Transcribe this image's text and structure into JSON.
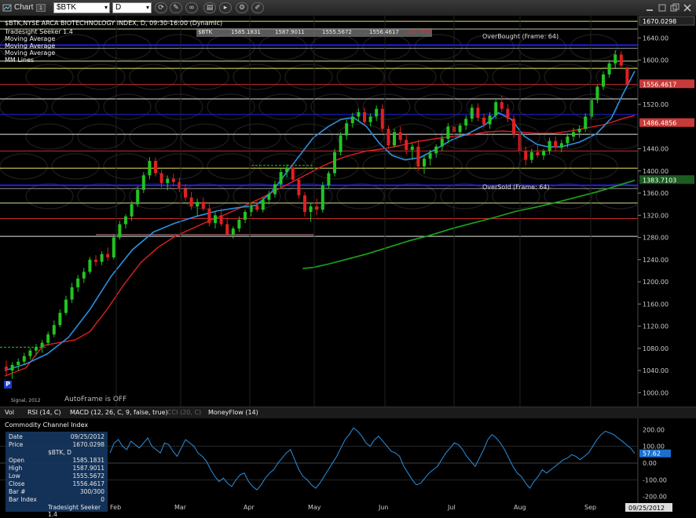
{
  "toolbar": {
    "chart_label": "Chart",
    "chart_badge": "1",
    "symbol": "$BTK",
    "interval": "D"
  },
  "header": {
    "title": "$BTK,NYSE ARCA BIOTECHNOLOGY INDEX, D, 09:30-16:00 (Dynamic)",
    "studies": [
      "Tradesight Seeker 1.4",
      "Moving Average",
      "Moving Average",
      "Moving Average",
      "MM Lines"
    ],
    "quote_strip": [
      "$BTK",
      "1585.1831",
      "1587.9011",
      "1555.5672",
      "1556.4617",
      "-20.3500"
    ]
  },
  "annotations": {
    "overbought": "OverBought (Frame: 64)",
    "oversold": "OverSold (Frame: 64)",
    "autoframe": "AutoFrame is OFF",
    "signal": "Signal, 2012"
  },
  "colors": {
    "background": "#000000",
    "up_candle": "#22c322",
    "down_candle": "#e02020",
    "ma_fast": "#2a90e0",
    "ma_mid": "#e02020",
    "ma_slow": "#1aa51a",
    "mm_blue": "#1010d0",
    "mm_yellow": "#f0f0a0",
    "mm_red": "#e02020",
    "price_tag_red": "#d03030",
    "price_tag_green": "#1a5a20"
  },
  "chart_data": {
    "type": "candlestick",
    "x": [
      "Feb",
      "Mar",
      "Apr",
      "May",
      "Jun",
      "Jul",
      "Aug",
      "Sep"
    ],
    "y_ticks": [
      "1670.0298",
      "1640.00",
      "1600.00",
      "1556.4617",
      "1520.00",
      "1486.4856",
      "1440.00",
      "1400.00",
      "1383.7103",
      "1360.00",
      "1320.00",
      "1280.00",
      "1240.00",
      "1200.00",
      "1160.00",
      "1120.00",
      "1080.00",
      "1040.00",
      "1000.00"
    ],
    "ylim": [
      975,
      1680
    ],
    "price_tags": [
      {
        "value": 1670.03,
        "label": "1670.0298",
        "style": "dark"
      },
      {
        "value": 1556.46,
        "label": "1556.4617",
        "style": "red"
      },
      {
        "value": 1486.49,
        "label": "1486.4856",
        "style": "red"
      },
      {
        "value": 1383.71,
        "label": "1383.7103",
        "style": "green"
      }
    ],
    "mm_lines": [
      {
        "value": 1670,
        "color": "#ffff90",
        "width": 1
      },
      {
        "value": 1656,
        "color": "#d8d8a0",
        "width": 1
      },
      {
        "value": 1627,
        "color": "#2222ff",
        "width": 2
      },
      {
        "value": 1598,
        "color": "#f0f0a0",
        "width": 1
      },
      {
        "value": 1585,
        "color": "#ffff70",
        "width": 1
      },
      {
        "value": 1556,
        "color": "#e03030",
        "width": 1
      },
      {
        "value": 1530,
        "color": "#ffffff",
        "width": 1
      },
      {
        "value": 1502,
        "color": "#2222ff",
        "width": 1
      },
      {
        "value": 1466,
        "color": "#ffffff",
        "width": 1
      },
      {
        "value": 1436,
        "color": "#e03030",
        "width": 1
      },
      {
        "value": 1405,
        "color": "#ffff60",
        "width": 1
      },
      {
        "value": 1374,
        "color": "#2222ff",
        "width": 2
      },
      {
        "value": 1342,
        "color": "#f0f0a0",
        "width": 1
      },
      {
        "value": 1314,
        "color": "#e03030",
        "width": 1
      },
      {
        "value": 1282,
        "color": "#ffffff",
        "width": 1
      }
    ],
    "ma_fast": [
      [
        0,
        1040
      ],
      [
        10,
        1052
      ],
      [
        20,
        1070
      ],
      [
        30,
        1100
      ],
      [
        40,
        1150
      ],
      [
        50,
        1210
      ],
      [
        60,
        1258
      ],
      [
        70,
        1290
      ],
      [
        80,
        1306
      ],
      [
        90,
        1318
      ],
      [
        100,
        1328
      ],
      [
        110,
        1334
      ],
      [
        118,
        1338
      ],
      [
        125,
        1360
      ],
      [
        133,
        1400
      ],
      [
        138,
        1425
      ],
      [
        145,
        1460
      ],
      [
        152,
        1480
      ],
      [
        158,
        1493
      ],
      [
        164,
        1496
      ],
      [
        170,
        1480
      ],
      [
        176,
        1450
      ],
      [
        182,
        1428
      ],
      [
        188,
        1420
      ],
      [
        195,
        1424
      ],
      [
        202,
        1438
      ],
      [
        210,
        1456
      ],
      [
        218,
        1468
      ],
      [
        226,
        1484
      ],
      [
        232,
        1505
      ],
      [
        238,
        1493
      ],
      [
        244,
        1463
      ],
      [
        250,
        1448
      ],
      [
        256,
        1443
      ],
      [
        262,
        1444
      ],
      [
        270,
        1452
      ],
      [
        278,
        1467
      ],
      [
        285,
        1495
      ],
      [
        290,
        1535
      ],
      [
        296,
        1580
      ]
    ],
    "ma_mid": [
      [
        0,
        1030
      ],
      [
        10,
        1045
      ],
      [
        18,
        1085
      ],
      [
        25,
        1090
      ],
      [
        33,
        1095
      ],
      [
        40,
        1110
      ],
      [
        48,
        1150
      ],
      [
        56,
        1195
      ],
      [
        64,
        1235
      ],
      [
        72,
        1262
      ],
      [
        80,
        1282
      ],
      [
        88,
        1296
      ],
      [
        96,
        1310
      ],
      [
        104,
        1322
      ],
      [
        112,
        1336
      ],
      [
        120,
        1350
      ],
      [
        128,
        1366
      ],
      [
        136,
        1382
      ],
      [
        144,
        1398
      ],
      [
        150,
        1410
      ],
      [
        156,
        1420
      ],
      [
        162,
        1428
      ],
      [
        170,
        1436
      ],
      [
        178,
        1440
      ],
      [
        186,
        1446
      ],
      [
        194,
        1453
      ],
      [
        202,
        1458
      ],
      [
        210,
        1462
      ],
      [
        218,
        1465
      ],
      [
        226,
        1470
      ],
      [
        234,
        1472
      ],
      [
        242,
        1470
      ],
      [
        250,
        1468
      ],
      [
        258,
        1468
      ],
      [
        266,
        1472
      ],
      [
        274,
        1478
      ],
      [
        282,
        1484
      ],
      [
        290,
        1494
      ],
      [
        296,
        1500
      ]
    ],
    "ma_slow": [
      [
        140,
        1224
      ],
      [
        145,
        1226
      ],
      [
        152,
        1232
      ],
      [
        160,
        1240
      ],
      [
        170,
        1250
      ],
      [
        180,
        1262
      ],
      [
        190,
        1274
      ],
      [
        200,
        1284
      ],
      [
        210,
        1296
      ],
      [
        220,
        1306
      ],
      [
        230,
        1316
      ],
      [
        240,
        1327
      ],
      [
        250,
        1335
      ],
      [
        260,
        1344
      ],
      [
        270,
        1354
      ],
      [
        280,
        1364
      ],
      [
        290,
        1376
      ],
      [
        296,
        1383
      ]
    ],
    "ohlc": [
      [
        1047,
        1058,
        1030,
        1040
      ],
      [
        1040,
        1055,
        1025,
        1050
      ],
      [
        1050,
        1062,
        1040,
        1056
      ],
      [
        1056,
        1072,
        1050,
        1066
      ],
      [
        1066,
        1080,
        1060,
        1076
      ],
      [
        1076,
        1088,
        1068,
        1082
      ],
      [
        1082,
        1095,
        1072,
        1090
      ],
      [
        1090,
        1110,
        1085,
        1105
      ],
      [
        1105,
        1130,
        1100,
        1122
      ],
      [
        1122,
        1150,
        1118,
        1144
      ],
      [
        1144,
        1175,
        1140,
        1168
      ],
      [
        1168,
        1198,
        1162,
        1190
      ],
      [
        1190,
        1212,
        1182,
        1206
      ],
      [
        1206,
        1225,
        1198,
        1218
      ],
      [
        1218,
        1245,
        1214,
        1240
      ],
      [
        1240,
        1248,
        1228,
        1236
      ],
      [
        1236,
        1255,
        1230,
        1250
      ],
      [
        1250,
        1262,
        1238,
        1244
      ],
      [
        1244,
        1285,
        1240,
        1280
      ],
      [
        1280,
        1310,
        1276,
        1304
      ],
      [
        1304,
        1322,
        1296,
        1318
      ],
      [
        1318,
        1345,
        1310,
        1340
      ],
      [
        1340,
        1372,
        1335,
        1366
      ],
      [
        1366,
        1398,
        1360,
        1392
      ],
      [
        1392,
        1425,
        1385,
        1418
      ],
      [
        1418,
        1424,
        1390,
        1396
      ],
      [
        1396,
        1402,
        1370,
        1378
      ],
      [
        1378,
        1392,
        1365,
        1386
      ],
      [
        1386,
        1395,
        1372,
        1380
      ],
      [
        1380,
        1388,
        1362,
        1368
      ],
      [
        1368,
        1376,
        1346,
        1352
      ],
      [
        1352,
        1362,
        1330,
        1336
      ],
      [
        1336,
        1350,
        1318,
        1344
      ],
      [
        1344,
        1352,
        1328,
        1332
      ],
      [
        1332,
        1340,
        1300,
        1306
      ],
      [
        1306,
        1326,
        1296,
        1320
      ],
      [
        1320,
        1332,
        1300,
        1304
      ],
      [
        1304,
        1316,
        1280,
        1286
      ],
      [
        1286,
        1300,
        1278,
        1296
      ],
      [
        1296,
        1318,
        1290,
        1312
      ],
      [
        1312,
        1330,
        1306,
        1326
      ],
      [
        1326,
        1342,
        1318,
        1338
      ],
      [
        1338,
        1344,
        1326,
        1330
      ],
      [
        1330,
        1352,
        1325,
        1348
      ],
      [
        1348,
        1364,
        1340,
        1358
      ],
      [
        1358,
        1382,
        1352,
        1376
      ],
      [
        1376,
        1405,
        1370,
        1398
      ],
      [
        1398,
        1412,
        1388,
        1406
      ],
      [
        1406,
        1412,
        1380,
        1384
      ],
      [
        1384,
        1388,
        1350,
        1356
      ],
      [
        1356,
        1362,
        1318,
        1326
      ],
      [
        1326,
        1342,
        1308,
        1336
      ],
      [
        1336,
        1350,
        1320,
        1330
      ],
      [
        1330,
        1380,
        1325,
        1374
      ],
      [
        1374,
        1400,
        1368,
        1396
      ],
      [
        1396,
        1440,
        1390,
        1434
      ],
      [
        1434,
        1470,
        1428,
        1464
      ],
      [
        1464,
        1492,
        1456,
        1486
      ],
      [
        1486,
        1505,
        1478,
        1498
      ],
      [
        1498,
        1512,
        1490,
        1506
      ],
      [
        1506,
        1514,
        1482,
        1488
      ],
      [
        1488,
        1504,
        1480,
        1498
      ],
      [
        1498,
        1518,
        1490,
        1512
      ],
      [
        1512,
        1520,
        1470,
        1476
      ],
      [
        1476,
        1482,
        1440,
        1446
      ],
      [
        1446,
        1476,
        1442,
        1470
      ],
      [
        1470,
        1480,
        1450,
        1456
      ],
      [
        1456,
        1468,
        1430,
        1438
      ],
      [
        1438,
        1450,
        1420,
        1444
      ],
      [
        1444,
        1456,
        1400,
        1408
      ],
      [
        1408,
        1428,
        1395,
        1422
      ],
      [
        1422,
        1438,
        1410,
        1432
      ],
      [
        1432,
        1448,
        1424,
        1444
      ],
      [
        1444,
        1464,
        1436,
        1458
      ],
      [
        1458,
        1486,
        1450,
        1480
      ],
      [
        1480,
        1492,
        1462,
        1470
      ],
      [
        1470,
        1486,
        1462,
        1482
      ],
      [
        1482,
        1500,
        1474,
        1494
      ],
      [
        1494,
        1520,
        1488,
        1514
      ],
      [
        1514,
        1522,
        1490,
        1496
      ],
      [
        1496,
        1504,
        1478,
        1484
      ],
      [
        1484,
        1506,
        1476,
        1500
      ],
      [
        1500,
        1528,
        1494,
        1524
      ],
      [
        1524,
        1536,
        1506,
        1512
      ],
      [
        1512,
        1520,
        1488,
        1494
      ],
      [
        1494,
        1500,
        1460,
        1466
      ],
      [
        1466,
        1476,
        1430,
        1436
      ],
      [
        1436,
        1444,
        1410,
        1420
      ],
      [
        1420,
        1440,
        1414,
        1434
      ],
      [
        1434,
        1446,
        1424,
        1428
      ],
      [
        1428,
        1440,
        1420,
        1436
      ],
      [
        1436,
        1460,
        1430,
        1454
      ],
      [
        1454,
        1462,
        1436,
        1442
      ],
      [
        1442,
        1456,
        1434,
        1450
      ],
      [
        1450,
        1468,
        1442,
        1462
      ],
      [
        1462,
        1478,
        1454,
        1470
      ],
      [
        1470,
        1482,
        1460,
        1476
      ],
      [
        1476,
        1504,
        1470,
        1498
      ],
      [
        1498,
        1532,
        1494,
        1528
      ],
      [
        1528,
        1556,
        1522,
        1552
      ],
      [
        1552,
        1580,
        1546,
        1574
      ],
      [
        1574,
        1600,
        1568,
        1594
      ],
      [
        1594,
        1618,
        1586,
        1610
      ],
      [
        1610,
        1616,
        1584,
        1590
      ],
      [
        1585,
        1588,
        1556,
        1556
      ]
    ]
  },
  "tabs": [
    "Vol",
    "RSI (14, C)",
    "MACD (12, 26, C, 9, false, true)",
    "CCI (20, C)",
    "MoneyFlow (14)"
  ],
  "active_tab": 3,
  "indicator": {
    "title": "Commodity Channel Index",
    "y_ticks": [
      200,
      100,
      57.62,
      0,
      -100,
      -200
    ],
    "y_labels": [
      "200.00",
      "100.00",
      "57.62",
      "0.00",
      "-100.00",
      "-200.00"
    ],
    "ylim": [
      -220,
      220
    ],
    "last_label": "57.62",
    "values": [
      60,
      120,
      140,
      100,
      80,
      130,
      110,
      90,
      120,
      150,
      100,
      80,
      60,
      120,
      110,
      70,
      40,
      90,
      140,
      120,
      100,
      60,
      40,
      10,
      -40,
      -80,
      -110,
      -90,
      -120,
      -140,
      -100,
      -70,
      -60,
      -110,
      -140,
      -160,
      -130,
      -90,
      -60,
      -40,
      0,
      30,
      60,
      80,
      20,
      -40,
      -80,
      -100,
      -130,
      -150,
      -120,
      -80,
      -40,
      0,
      40,
      90,
      140,
      170,
      210,
      190,
      160,
      120,
      100,
      140,
      160,
      130,
      100,
      70,
      60,
      40,
      -20,
      -60,
      -100,
      -130,
      -120,
      -90,
      -60,
      -40,
      -20,
      20,
      60,
      90,
      120,
      110,
      80,
      40,
      10,
      -20,
      30,
      80,
      140,
      170,
      150,
      120,
      80,
      30,
      -20,
      -60,
      -80,
      -120,
      -150,
      -110,
      -80,
      -40,
      -60,
      -40,
      -20,
      0,
      20,
      30,
      50,
      40,
      20,
      40,
      60,
      100,
      140,
      170,
      190,
      180,
      170,
      150,
      130,
      110,
      90,
      57.62
    ]
  },
  "info_panel": {
    "rows": [
      {
        "k": "Date",
        "v": "09/25/2012"
      },
      {
        "k": "Price",
        "v": "1670.0298"
      },
      {
        "k": "",
        "v": "$BTK, D"
      },
      {
        "k": "Open",
        "v": "1585.1831"
      },
      {
        "k": "High",
        "v": "1587.9011"
      },
      {
        "k": "Low",
        "v": "1555.5672"
      },
      {
        "k": "Close",
        "v": "1556.4617"
      },
      {
        "k": "Bar #",
        "v": "300/300"
      },
      {
        "k": "Bar Index",
        "v": "0"
      },
      {
        "k": "",
        "v": "Tradesight Seeker 1.4"
      }
    ]
  },
  "lower_axis": {
    "months": [
      "Feb",
      "Mar",
      "Apr",
      "May",
      "Jun",
      "Jul",
      "Aug",
      "Sep"
    ],
    "date_tag": "09/25/2012"
  }
}
